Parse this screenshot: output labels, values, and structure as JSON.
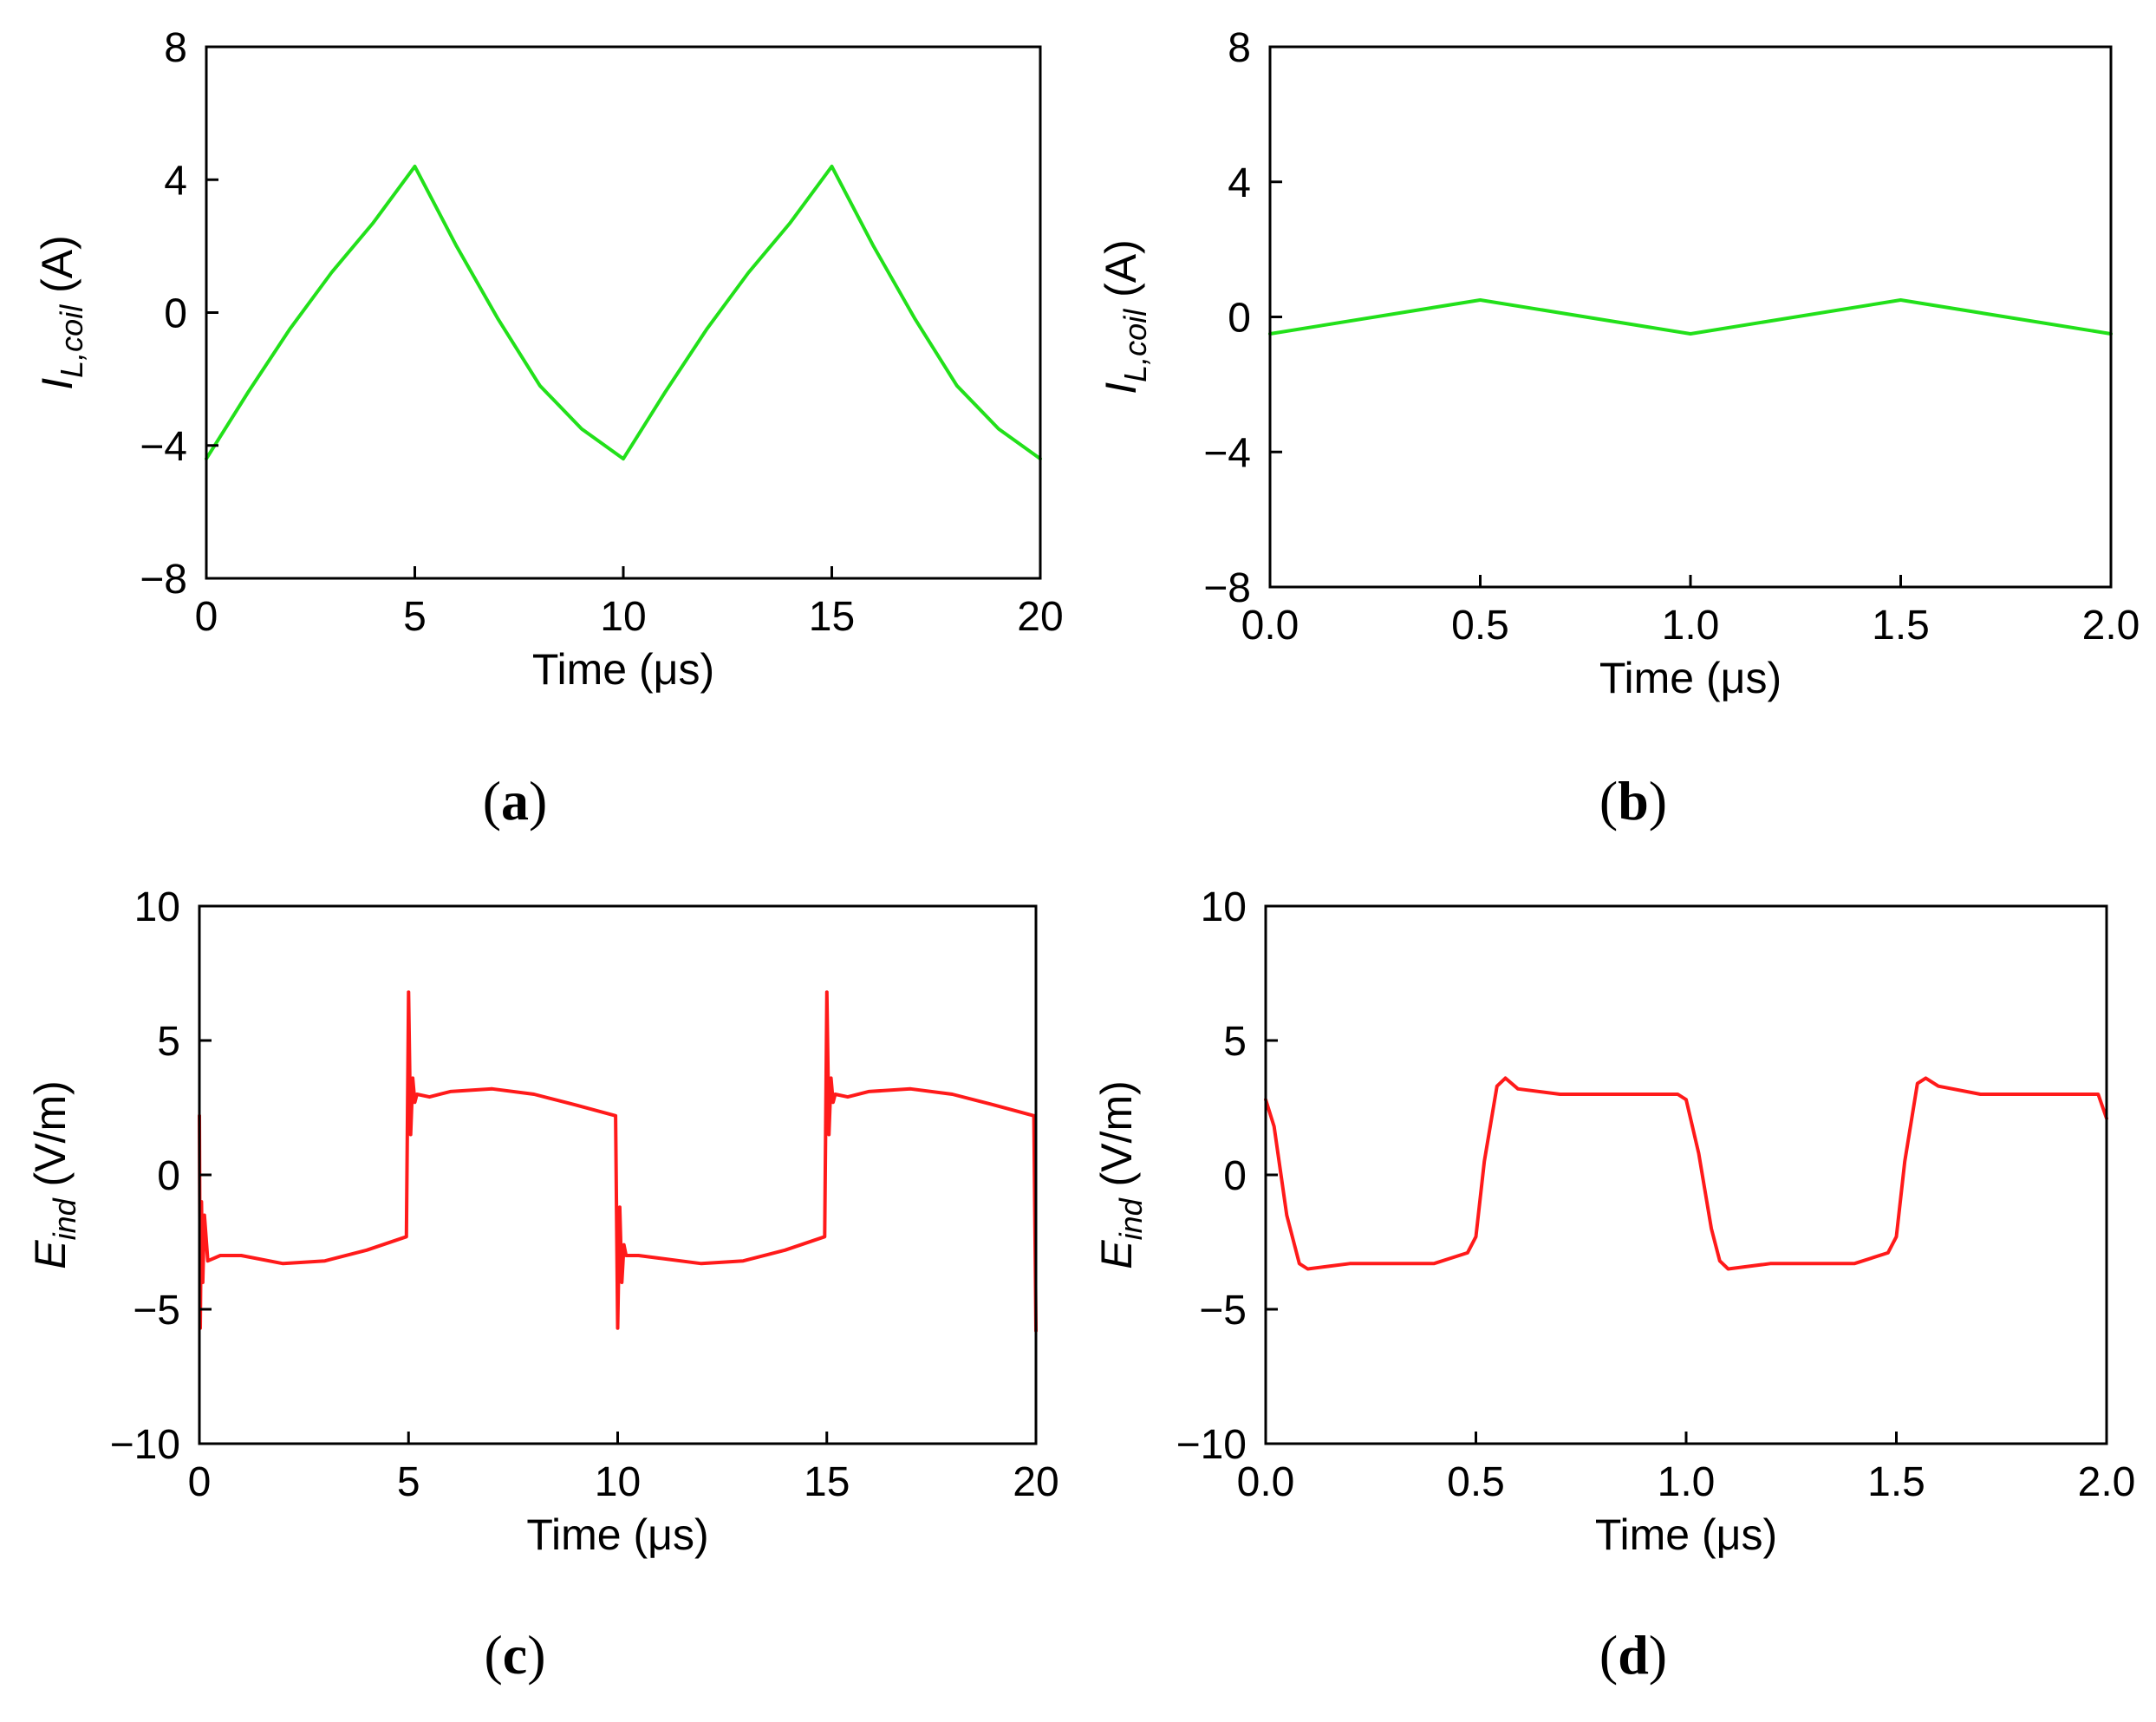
{
  "chart_data": [
    {
      "id": "a",
      "type": "line",
      "caption": "a",
      "xlabel": "Time (μs)",
      "ylabel": {
        "base": "I",
        "sub": "L,coil",
        "unit": " (A)"
      },
      "xlim": [
        0,
        20
      ],
      "ylim": [
        -8,
        8
      ],
      "xticks": [
        0,
        5,
        10,
        15,
        20
      ],
      "xtick_labels": [
        "0",
        "5",
        "10",
        "15",
        "20"
      ],
      "yticks": [
        -8,
        -4,
        0,
        4,
        8
      ],
      "ytick_labels": [
        "−8",
        "−4",
        "0",
        "4",
        "8"
      ],
      "grid": false,
      "series": [
        {
          "name": "I_L,coil",
          "color": "#22e01a",
          "x": [
            0,
            1,
            2,
            3,
            4,
            5,
            6,
            7,
            8,
            9,
            10,
            11,
            12,
            13,
            14,
            15,
            16,
            17,
            18,
            19,
            20
          ],
          "y": [
            -4.4,
            -2.4,
            -0.5,
            1.2,
            2.7,
            4.4,
            2.0,
            -0.2,
            -2.2,
            -3.5,
            -4.4,
            -2.4,
            -0.5,
            1.2,
            2.7,
            4.4,
            2.0,
            -0.2,
            -2.2,
            -3.5,
            -4.4
          ]
        }
      ]
    },
    {
      "id": "b",
      "type": "line",
      "caption": "b",
      "xlabel": "Time (μs)",
      "ylabel": {
        "base": "I",
        "sub": "L,coil",
        "unit": " (A)"
      },
      "xlim": [
        0,
        2
      ],
      "ylim": [
        -8,
        8
      ],
      "xticks": [
        0,
        0.5,
        1.0,
        1.5,
        2.0
      ],
      "xtick_labels": [
        "0.0",
        "0.5",
        "1.0",
        "1.5",
        "2.0"
      ],
      "yticks": [
        -8,
        -4,
        0,
        4,
        8
      ],
      "ytick_labels": [
        "−8",
        "−4",
        "0",
        "4",
        "8"
      ],
      "grid": false,
      "series": [
        {
          "name": "I_L,coil",
          "color": "#22e01a",
          "x": [
            0,
            0.5,
            1.0,
            1.5,
            2.0
          ],
          "y": [
            -0.5,
            0.5,
            -0.5,
            0.5,
            -0.5
          ]
        }
      ]
    },
    {
      "id": "c",
      "type": "line",
      "caption": "c",
      "xlabel": "Time (μs)",
      "ylabel": {
        "base": "E",
        "sub": "ind",
        "unit": " (V/m)"
      },
      "xlim": [
        0,
        20
      ],
      "ylim": [
        -10,
        10
      ],
      "xticks": [
        0,
        5,
        10,
        15,
        20
      ],
      "xtick_labels": [
        "0",
        "5",
        "10",
        "15",
        "20"
      ],
      "yticks": [
        -10,
        -5,
        0,
        5,
        10
      ],
      "ytick_labels": [
        "−10",
        "−5",
        "0",
        "5",
        "10"
      ],
      "grid": false,
      "series": [
        {
          "name": "E_ind",
          "color": "#ff1a1a",
          "x": [
            0,
            0.02,
            0.05,
            0.08,
            0.12,
            0.2,
            0.5,
            1,
            2,
            3,
            4,
            4.95,
            5.0,
            5.05,
            5.1,
            5.15,
            5.2,
            5.5,
            6,
            7,
            8,
            9,
            9.95,
            10.0,
            10.05,
            10.1,
            10.15,
            10.2,
            10.5,
            11,
            12,
            13,
            14,
            14.95,
            15.0,
            15.05,
            15.1,
            15.15,
            15.2,
            15.5,
            16,
            17,
            18,
            19,
            19.95,
            20.0
          ],
          "y": [
            2.2,
            -5.7,
            -1.0,
            -4.0,
            -1.5,
            -3.2,
            -3.0,
            -3.0,
            -3.3,
            -3.2,
            -2.8,
            -2.3,
            6.8,
            1.5,
            3.6,
            2.7,
            3.0,
            2.9,
            3.1,
            3.2,
            3.0,
            2.6,
            2.2,
            -5.7,
            -1.2,
            -4.0,
            -2.6,
            -3.0,
            -3.0,
            -3.1,
            -3.3,
            -3.2,
            -2.8,
            -2.3,
            6.8,
            1.5,
            3.6,
            2.7,
            3.0,
            2.9,
            3.1,
            3.2,
            3.0,
            2.6,
            2.2,
            -5.8
          ]
        }
      ]
    },
    {
      "id": "d",
      "type": "line",
      "caption": "d",
      "xlabel": "Time (μs)",
      "ylabel": {
        "base": "E",
        "sub": "ind",
        "unit": " (V/m)"
      },
      "xlim": [
        0,
        2
      ],
      "ylim": [
        -10,
        10
      ],
      "xticks": [
        0,
        0.5,
        1.0,
        1.5,
        2.0
      ],
      "xtick_labels": [
        "0.0",
        "0.5",
        "1.0",
        "1.5",
        "2.0"
      ],
      "yticks": [
        -10,
        -5,
        0,
        5,
        10
      ],
      "ytick_labels": [
        "−10",
        "−5",
        "0",
        "5",
        "10"
      ],
      "grid": false,
      "series": [
        {
          "name": "E_ind",
          "color": "#ff1a1a",
          "x": [
            0,
            0.02,
            0.05,
            0.08,
            0.1,
            0.15,
            0.2,
            0.3,
            0.4,
            0.48,
            0.5,
            0.52,
            0.55,
            0.57,
            0.6,
            0.7,
            0.8,
            0.9,
            0.98,
            1.0,
            1.03,
            1.06,
            1.08,
            1.1,
            1.15,
            1.2,
            1.3,
            1.4,
            1.48,
            1.5,
            1.52,
            1.55,
            1.57,
            1.6,
            1.7,
            1.8,
            1.9,
            1.98,
            2.0
          ],
          "y": [
            2.8,
            1.8,
            -1.5,
            -3.3,
            -3.5,
            -3.4,
            -3.3,
            -3.3,
            -3.3,
            -2.9,
            -2.3,
            0.5,
            3.3,
            3.6,
            3.2,
            3.0,
            3.0,
            3.0,
            3.0,
            2.8,
            0.8,
            -2.0,
            -3.2,
            -3.5,
            -3.4,
            -3.3,
            -3.3,
            -3.3,
            -2.9,
            -2.3,
            0.5,
            3.4,
            3.6,
            3.3,
            3.0,
            3.0,
            3.0,
            3.0,
            2.1
          ]
        }
      ]
    }
  ]
}
